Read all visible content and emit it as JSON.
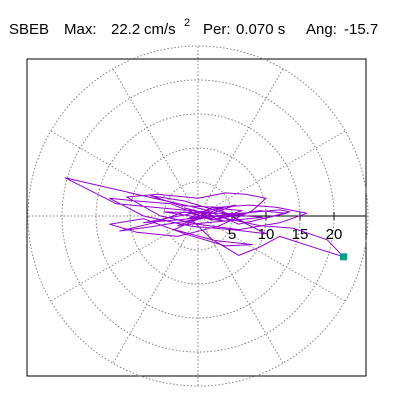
{
  "header": {
    "station": "SBEB",
    "max_label": "Max:",
    "max_value": "22.2",
    "max_unit": "cm/s",
    "max_unit_exp": "2",
    "per_label": "Per:",
    "per_value": "0.070 s",
    "ang_label": "Ang:",
    "ang_value": "-15.7"
  },
  "chart_data": {
    "type": "polar-orbit",
    "radial_max": 25,
    "rings": [
      5,
      10,
      15,
      20,
      25
    ],
    "spokes_deg": [
      0,
      30,
      60,
      90,
      120,
      150,
      180,
      210,
      240,
      270,
      300,
      330
    ],
    "tick_labels": [
      "5",
      "10",
      "15",
      "20"
    ],
    "tick_values": [
      5,
      10,
      15,
      20
    ],
    "grid": true,
    "colors": {
      "trace": "#9400d3",
      "marker": "#00a080",
      "grid": "#808080",
      "axis": "#000000"
    },
    "peak": {
      "x": 21.4,
      "y": -6.0
    },
    "trace": [
      [
        0.0,
        0.0
      ],
      [
        1.2,
        0.4
      ],
      [
        -2.0,
        1.2
      ],
      [
        4.0,
        -0.8
      ],
      [
        -5.0,
        0.6
      ],
      [
        7.0,
        0.3
      ],
      [
        -8.0,
        -1.0
      ],
      [
        5.5,
        1.6
      ],
      [
        -3.0,
        -1.4
      ],
      [
        9.5,
        -0.2
      ],
      [
        -12.0,
        1.8
      ],
      [
        -19.5,
        5.6
      ],
      [
        -6.0,
        2.5
      ],
      [
        0.8,
        1.0
      ],
      [
        6.0,
        -1.2
      ],
      [
        13.0,
        0.4
      ],
      [
        9.0,
        0.8
      ],
      [
        2.0,
        -0.6
      ],
      [
        -4.0,
        1.8
      ],
      [
        -9.0,
        2.2
      ],
      [
        -13.0,
        2.6
      ],
      [
        -8.0,
        0.0
      ],
      [
        -1.0,
        -1.5
      ],
      [
        5.0,
        -2.0
      ],
      [
        10.0,
        -2.6
      ],
      [
        4.0,
        0.4
      ],
      [
        -2.0,
        2.2
      ],
      [
        -7.0,
        3.0
      ],
      [
        -2.5,
        1.5
      ],
      [
        3.0,
        1.3
      ],
      [
        7.5,
        1.6
      ],
      [
        11.5,
        1.3
      ],
      [
        16.0,
        0.4
      ],
      [
        12.0,
        -1.0
      ],
      [
        6.0,
        -2.0
      ],
      [
        0.0,
        -1.2
      ],
      [
        -5.5,
        0.0
      ],
      [
        -10.5,
        2.8
      ],
      [
        -6.0,
        3.2
      ],
      [
        0.0,
        2.6
      ],
      [
        4.0,
        3.4
      ],
      [
        7.0,
        3.2
      ],
      [
        10.0,
        2.6
      ],
      [
        8.0,
        0.8
      ],
      [
        3.0,
        -1.5
      ],
      [
        -3.0,
        -3.0
      ],
      [
        -9.0,
        -2.4
      ],
      [
        -13.0,
        -1.2
      ],
      [
        -8.0,
        -0.4
      ],
      [
        -2.0,
        -2.6
      ],
      [
        4.0,
        -4.4
      ],
      [
        8.0,
        -4.2
      ],
      [
        2.5,
        -3.6
      ],
      [
        -3.5,
        -2.0
      ],
      [
        1.5,
        0.2
      ],
      [
        9.0,
        -1.4
      ],
      [
        14.0,
        -1.8
      ],
      [
        19.0,
        -3.5
      ],
      [
        21.4,
        -6.0
      ],
      [
        17.0,
        -4.6
      ],
      [
        12.0,
        -3.0
      ],
      [
        9.0,
        -4.6
      ],
      [
        6.0,
        -5.8
      ],
      [
        2.0,
        -3.4
      ],
      [
        -1.0,
        -0.5
      ],
      [
        3.0,
        1.0
      ],
      [
        7.0,
        -1.0
      ],
      [
        13.5,
        0.6
      ],
      [
        12.0,
        0.9
      ],
      [
        4.0,
        0.2
      ],
      [
        -2.0,
        -0.8
      ],
      [
        -7.0,
        -1.6
      ],
      [
        -11.5,
        -2.2
      ],
      [
        -6.5,
        -1.0
      ],
      [
        -2.0,
        0.6
      ],
      [
        2.5,
        -0.5
      ],
      [
        6.5,
        0.8
      ],
      [
        2.0,
        1.2
      ],
      [
        -1.5,
        -0.4
      ],
      [
        1.0,
        0.2
      ],
      [
        0.0,
        0.0
      ]
    ]
  }
}
